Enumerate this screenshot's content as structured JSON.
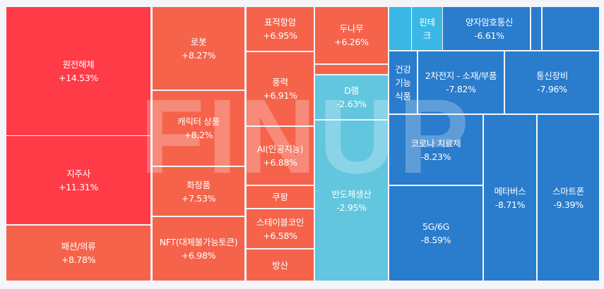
{
  "watermark": "FINUP",
  "colors": {
    "strong_up": "#ff3b47",
    "up": "#f5634b",
    "mild_down": "#62c6de",
    "cyan": "#3ab7e4",
    "down": "#2a7ccc"
  },
  "chart_data": {
    "type": "treemap",
    "title": "",
    "items": [
      {
        "name": "원전해체",
        "change": "+14.53%"
      },
      {
        "name": "지주사",
        "change": "+11.31%"
      },
      {
        "name": "패션/의류",
        "change": "+8.78%"
      },
      {
        "name": "로봇",
        "change": "+8.27%"
      },
      {
        "name": "캐릭터 상품",
        "change": "+8.2%"
      },
      {
        "name": "화장품",
        "change": "+7.53%"
      },
      {
        "name": "NFT(대체불가능토큰)",
        "change": "+6.98%"
      },
      {
        "name": "표적항암",
        "change": "+6.95%"
      },
      {
        "name": "풍력",
        "change": "+6.91%"
      },
      {
        "name": "AI(인공지능)",
        "change": "+6.88%"
      },
      {
        "name": "쿠팡",
        "change": null
      },
      {
        "name": "스테이블코인",
        "change": "+6.58%"
      },
      {
        "name": "방산",
        "change": null
      },
      {
        "name": "두나무",
        "change": "+6.26%"
      },
      {
        "name": null,
        "change": null
      },
      {
        "name": "D램",
        "change": "-2.63%"
      },
      {
        "name": "반도체생산",
        "change": "-2.95%"
      },
      {
        "name": null,
        "change": null
      },
      {
        "name": "핀테크",
        "change": null
      },
      {
        "name": null,
        "change": null
      },
      {
        "name": "양자암호통신",
        "change": "-6.61%"
      },
      {
        "name": null,
        "change": null
      },
      {
        "name": null,
        "change": null
      },
      {
        "name": "건강기능식품",
        "change": null
      },
      {
        "name": "2차전지 - 소재/부품",
        "change": "-7.82%"
      },
      {
        "name": "통신장비",
        "change": "-7.96%"
      },
      {
        "name": "코로나 치료제",
        "change": "-8.23%"
      },
      {
        "name": "5G/6G",
        "change": "-8.59%"
      },
      {
        "name": "메타버스",
        "change": "-8.71%"
      },
      {
        "name": "스마트폰",
        "change": "-9.39%"
      }
    ]
  }
}
